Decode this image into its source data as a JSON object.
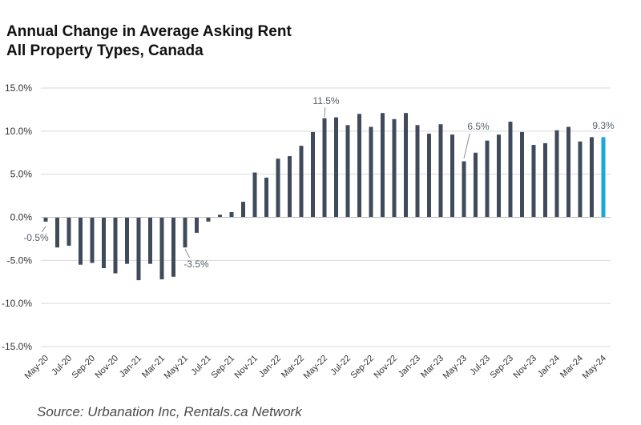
{
  "chart_data": {
    "type": "bar",
    "title": "Annual Change in Average Asking Rent",
    "subtitle": "All Property Types, Canada",
    "source": "Source: Urbanation Inc, Rentals.ca Network",
    "xlabel": "",
    "ylabel": "",
    "ylim": [
      -15,
      15
    ],
    "yticks": [
      15,
      10,
      5,
      0,
      -5,
      -10,
      -15
    ],
    "ytick_labels": [
      "15.0%",
      "10.0%",
      "5.0%",
      "0.0%",
      "-5.0%",
      "-10.0%",
      "-15.0%"
    ],
    "categories": [
      "May-20",
      "Jun-20",
      "Jul-20",
      "Aug-20",
      "Sep-20",
      "Oct-20",
      "Nov-20",
      "Dec-20",
      "Jan-21",
      "Feb-21",
      "Mar-21",
      "Apr-21",
      "May-21",
      "Jun-21",
      "Jul-21",
      "Aug-21",
      "Sep-21",
      "Oct-21",
      "Nov-21",
      "Dec-21",
      "Jan-22",
      "Feb-22",
      "Mar-22",
      "Apr-22",
      "May-22",
      "Jun-22",
      "Jul-22",
      "Aug-22",
      "Sep-22",
      "Oct-22",
      "Nov-22",
      "Dec-22",
      "Jan-23",
      "Feb-23",
      "Mar-23",
      "Apr-23",
      "May-23",
      "Jun-23",
      "Jul-23",
      "Aug-23",
      "Sep-23",
      "Oct-23",
      "Nov-23",
      "Dec-23",
      "Jan-24",
      "Feb-24",
      "Mar-24",
      "Apr-24",
      "May-24"
    ],
    "xtick_labels": [
      "May-20",
      "Jul-20",
      "Sep-20",
      "Nov-20",
      "Jan-21",
      "Mar-21",
      "May-21",
      "Jul-21",
      "Sep-21",
      "Nov-21",
      "Jan-22",
      "Mar-22",
      "May-22",
      "Jul-22",
      "Sep-22",
      "Nov-22",
      "Jan-23",
      "Mar-23",
      "May-23",
      "Jul-23",
      "Sep-23",
      "Nov-23",
      "Jan-24",
      "Mar-24",
      "May-24"
    ],
    "values": [
      -0.5,
      -3.5,
      -3.3,
      -5.5,
      -5.3,
      -5.9,
      -6.5,
      -5.4,
      -7.3,
      -5.4,
      -7.2,
      -6.9,
      -3.5,
      -1.8,
      -0.5,
      0.3,
      0.6,
      1.8,
      5.2,
      4.6,
      6.8,
      7.1,
      8.3,
      9.9,
      11.5,
      11.6,
      10.7,
      12.0,
      10.5,
      12.1,
      11.4,
      12.1,
      10.7,
      9.7,
      10.8,
      9.6,
      6.5,
      7.5,
      8.9,
      9.6,
      11.1,
      9.9,
      8.4,
      8.6,
      10.1,
      10.5,
      8.8,
      9.3,
      9.3
    ],
    "bar_color": "#3f4b5b",
    "highlight_color": "#1aa7dc",
    "highlight_index": 48,
    "grid": true,
    "legend": "none",
    "annotations": [
      {
        "index": 0,
        "label": "-0.5%"
      },
      {
        "index": 12,
        "label": "-3.5%"
      },
      {
        "index": 24,
        "label": "11.5%"
      },
      {
        "index": 36,
        "label": "6.5%"
      },
      {
        "index": 48,
        "label": "9.3%"
      }
    ]
  }
}
